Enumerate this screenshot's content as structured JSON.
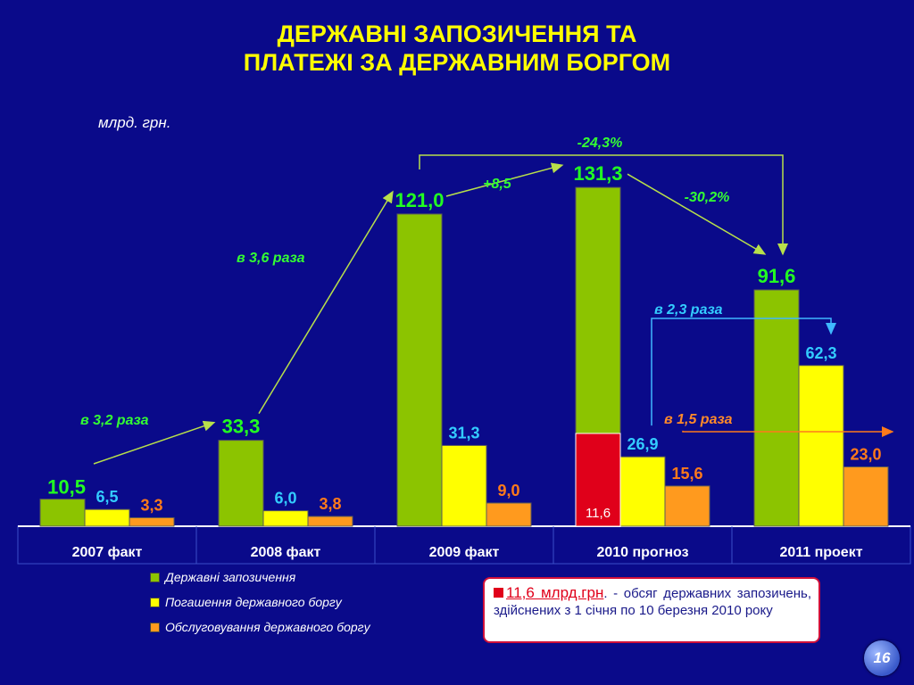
{
  "title": {
    "line1": "ДЕРЖАВНІ ЗАПОЗИЧЕННЯ ТА",
    "line2": "ПЛАТЕЖІ ЗА ДЕРЖАВНИМ БОРГОМ"
  },
  "units": "млрд. грн.",
  "colors": {
    "borrowing": "#8cc400",
    "repayment": "#ffff00",
    "service": "#ff9a1e",
    "background": "#0a0a8a",
    "accent_red": "#e0001a"
  },
  "chart_data": {
    "type": "bar",
    "categories": [
      "2007 факт",
      "2008 факт",
      "2009 факт",
      "2010 прогноз",
      "2011 проект"
    ],
    "series": [
      {
        "name": "Державні запозичення",
        "values": [
          10.5,
          33.3,
          121.0,
          131.3,
          91.6
        ],
        "labels": [
          "10,5",
          "33,3",
          "121,0",
          "131,3",
          "91,6"
        ]
      },
      {
        "name": "Погашення державного боргу",
        "values": [
          6.5,
          6.0,
          31.3,
          26.9,
          62.3
        ],
        "labels": [
          "6,5",
          "6,0",
          "31,3",
          "26,9",
          "62,3"
        ]
      },
      {
        "name": "Обслуговування державного боргу",
        "values": [
          3.3,
          3.8,
          9.0,
          15.6,
          23.0
        ],
        "labels": [
          "3,3",
          "3,8",
          "9,0",
          "15,6",
          "23,0"
        ]
      }
    ],
    "highlight": {
      "category": "2010 прогноз",
      "value": 11.6,
      "label": "11,6"
    },
    "annotations": [
      "в 3,2 раза",
      "в 3,6 раза",
      "+8,5",
      "-24,3%",
      "-30,2%",
      "в 2,3 раза",
      "в 1,5 раза"
    ],
    "legend_position": "bottom-left",
    "grid": false
  },
  "note": {
    "value": "11,6 млрд.грн",
    "text": ". - обсяг державних запозичень, здійснених з 1 січня по 10 березня 2010 року"
  },
  "page_number": "16"
}
